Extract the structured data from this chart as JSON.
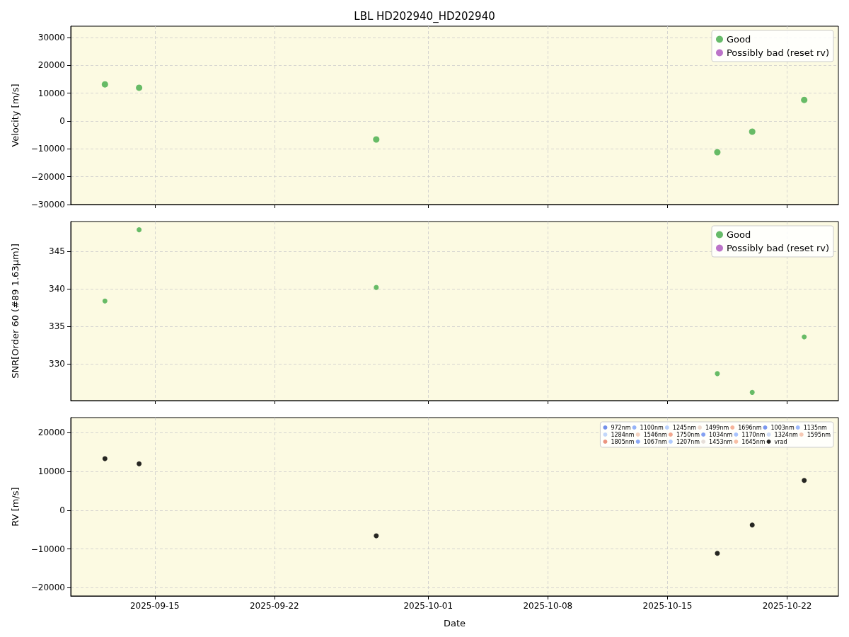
{
  "chart_data": [
    {
      "type": "scatter",
      "title": "LBL HD202940_HD202940",
      "ylabel": "Velocity [m/s]",
      "x": [
        "2025-09-12T02:00",
        "2025-09-14T02:00",
        "2025-09-27T23:00",
        "2025-10-17T22:00",
        "2025-10-19T23:00",
        "2025-10-23T00:00"
      ],
      "series": [
        {
          "name": "Good",
          "color": "#4caf50",
          "values": [
            13200,
            12000,
            -6600,
            -11200,
            -3800,
            7600
          ]
        },
        {
          "name": "Possibly bad (reset rv)",
          "color": "#b05cc0",
          "values": [
            null,
            null,
            null,
            null,
            null,
            null
          ]
        }
      ],
      "xlim": [
        "2025-09-10T02:00",
        "2025-10-25T00:00"
      ],
      "xticks": [
        "2025-09-15",
        "2025-09-22",
        "2025-10-01",
        "2025-10-08",
        "2025-10-15",
        "2025-10-22"
      ],
      "ylim": [
        -30000,
        34100
      ],
      "yticks": [
        -30000,
        -20000,
        -10000,
        0,
        10000,
        20000,
        30000
      ],
      "tick_labels": "y",
      "grid": true,
      "legend": "top right",
      "marker": "circle"
    },
    {
      "type": "scatter",
      "ylabel": "SNR[Order 60 (#89 1.63µm)]",
      "x": [
        "2025-09-12T02:00",
        "2025-09-14T02:00",
        "2025-09-27T23:00",
        "2025-10-17T22:00",
        "2025-10-19T23:00",
        "2025-10-23T00:00"
      ],
      "series": [
        {
          "name": "Good",
          "color": "#4caf50",
          "values": [
            338.4,
            347.9,
            340.2,
            328.7,
            326.2,
            333.6
          ]
        },
        {
          "name": "Possibly bad (reset rv)",
          "color": "#b05cc0",
          "values": [
            null,
            null,
            null,
            null,
            null,
            null
          ]
        }
      ],
      "xlim": [
        "2025-09-10T02:00",
        "2025-10-25T00:00"
      ],
      "xticks": [
        "2025-09-15",
        "2025-09-22",
        "2025-10-01",
        "2025-10-08",
        "2025-10-15",
        "2025-10-22"
      ],
      "ylim": [
        325.1,
        349.0
      ],
      "yticks": [
        330,
        335,
        340,
        345
      ],
      "tick_labels": "y",
      "grid": true,
      "legend": "top right",
      "marker": "circle"
    },
    {
      "type": "scatter",
      "ylabel": "RV [m/s]",
      "xlabel": "Date",
      "x": [
        "2025-09-12T02:00",
        "2025-09-14T02:00",
        "2025-09-27T23:00",
        "2025-10-17T22:00",
        "2025-10-19T23:00",
        "2025-10-23T00:00"
      ],
      "series": [
        {
          "name": "972nm",
          "color": "#5b7be6",
          "values": [
            null,
            null,
            null,
            null,
            null,
            null
          ]
        },
        {
          "name": "1003nm",
          "color": "#6485ec",
          "values": [
            null,
            null,
            null,
            null,
            null,
            null
          ]
        },
        {
          "name": "1034nm",
          "color": "#6e8ff0",
          "values": [
            null,
            null,
            null,
            null,
            null,
            null
          ]
        },
        {
          "name": "1067nm",
          "color": "#7899f5",
          "values": [
            null,
            null,
            null,
            null,
            null,
            null
          ]
        },
        {
          "name": "1100nm",
          "color": "#82a4f8",
          "values": [
            null,
            null,
            null,
            null,
            null,
            null
          ]
        },
        {
          "name": "1135nm",
          "color": "#8daefc",
          "values": [
            null,
            null,
            null,
            null,
            null,
            null
          ]
        },
        {
          "name": "1170nm",
          "color": "#98b8fe",
          "values": [
            null,
            null,
            null,
            null,
            null,
            null
          ]
        },
        {
          "name": "1207nm",
          "color": "#a3c2fe",
          "values": [
            null,
            null,
            null,
            null,
            null,
            null
          ]
        },
        {
          "name": "1245nm",
          "color": "#aec9fc",
          "values": [
            null,
            null,
            null,
            null,
            null,
            null
          ]
        },
        {
          "name": "1284nm",
          "color": "#b9d0f9",
          "values": [
            null,
            null,
            null,
            null,
            null,
            null
          ]
        },
        {
          "name": "1324nm",
          "color": "#c4d5f3",
          "values": [
            null,
            null,
            null,
            null,
            null,
            null
          ]
        },
        {
          "name": "1453nm",
          "color": "#e3d9d3",
          "values": [
            null,
            null,
            null,
            null,
            null,
            null
          ]
        },
        {
          "name": "1499nm",
          "color": "#ecd3c5",
          "values": [
            null,
            null,
            null,
            null,
            null,
            null
          ]
        },
        {
          "name": "1546nm",
          "color": "#f2cab5",
          "values": [
            null,
            null,
            null,
            null,
            null,
            null
          ]
        },
        {
          "name": "1595nm",
          "color": "#f5c0a6",
          "values": [
            null,
            null,
            null,
            null,
            null,
            null
          ]
        },
        {
          "name": "1645nm",
          "color": "#f6b497",
          "values": [
            null,
            null,
            null,
            null,
            null,
            null
          ]
        },
        {
          "name": "1696nm",
          "color": "#f4a688",
          "values": [
            null,
            null,
            null,
            null,
            null,
            null
          ]
        },
        {
          "name": "1750nm",
          "color": "#f0987a",
          "values": [
            null,
            null,
            null,
            null,
            null,
            null
          ]
        },
        {
          "name": "1805nm",
          "color": "#e8816a",
          "values": [
            null,
            null,
            null,
            null,
            null,
            null
          ]
        },
        {
          "name": "vrad",
          "color": "#000000",
          "values": [
            13300,
            12000,
            -6600,
            -11100,
            -3800,
            7700
          ]
        }
      ],
      "xlim": [
        "2025-09-10T02:00",
        "2025-10-25T00:00"
      ],
      "xticks": [
        "2025-09-15",
        "2025-09-22",
        "2025-10-01",
        "2025-10-08",
        "2025-10-15",
        "2025-10-22"
      ],
      "ylim": [
        -22100,
        23900
      ],
      "yticks": [
        -20000,
        -10000,
        0,
        10000,
        20000
      ],
      "grid": true,
      "legend": "top right",
      "marker": "circle"
    }
  ]
}
